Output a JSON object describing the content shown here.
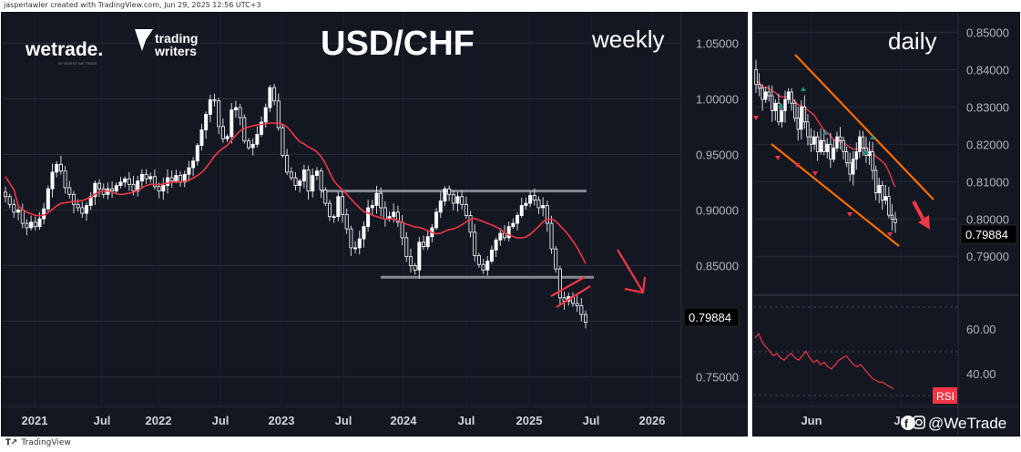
{
  "header_credit": "jasperlawler created with TradingView.com, Jun 29, 2025 12:56 UTC+3",
  "footer_brand": "TradingView",
  "brand": {
    "wetrade": "wetrade.",
    "wetrade_sub": "BY INVEST WE TRADE",
    "tw_line1": "trading",
    "tw_line2": "writers"
  },
  "weekly": {
    "title": "USD/CHF",
    "timeframe": "weekly",
    "price_tag": "0.79884",
    "x_ticks": [
      "2021",
      "Jul",
      "2022",
      "Jul",
      "2023",
      "Jul",
      "2024",
      "Jul",
      "2025",
      "Jul",
      "2026"
    ],
    "y_ticks": [
      "1.05000",
      "1.00000",
      "0.95000",
      "0.90000",
      "0.85000",
      "0.80000",
      "0.75000"
    ]
  },
  "daily": {
    "timeframe": "daily",
    "price_tag": "0.79884",
    "x_ticks": [
      "Jun",
      "Ju"
    ],
    "y_ticks": [
      "0.85000",
      "0.84000",
      "0.83000",
      "0.82000",
      "0.81000",
      "0.80000",
      "0.79000"
    ],
    "rsi_ticks": [
      "60.00",
      "40.00"
    ],
    "rsi_label": "RSI"
  },
  "handle": "@WeTrade",
  "colors": {
    "panel": "#131722",
    "up": "#ffffff",
    "ma": "#f23645",
    "level": "#868993",
    "channel": "#ff6d00",
    "arrow": "#f23645",
    "rsi": "#f23645",
    "green_mark": "#089981"
  },
  "chart_data": [
    {
      "type": "candlestick",
      "title": "USD/CHF",
      "timeframe": "weekly",
      "ylim": [
        0.725,
        1.065
      ],
      "x_range": [
        "2020-10",
        "2026-03"
      ],
      "current_price": 0.79884,
      "closes": [
        0.912,
        0.905,
        0.898,
        0.9,
        0.888,
        0.884,
        0.889,
        0.885,
        0.892,
        0.901,
        0.919,
        0.934,
        0.941,
        0.935,
        0.92,
        0.914,
        0.905,
        0.902,
        0.897,
        0.904,
        0.912,
        0.924,
        0.919,
        0.914,
        0.919,
        0.917,
        0.922,
        0.925,
        0.928,
        0.923,
        0.917,
        0.926,
        0.932,
        0.928,
        0.93,
        0.921,
        0.917,
        0.922,
        0.929,
        0.926,
        0.931,
        0.925,
        0.932,
        0.938,
        0.944,
        0.958,
        0.972,
        0.986,
        0.999,
        0.998,
        0.975,
        0.964,
        0.966,
        0.99,
        0.992,
        0.983,
        0.962,
        0.956,
        0.959,
        0.968,
        0.979,
        0.992,
        1.01,
        0.998,
        0.974,
        0.949,
        0.934,
        0.929,
        0.922,
        0.926,
        0.936,
        0.917,
        0.931,
        0.935,
        0.918,
        0.906,
        0.894,
        0.894,
        0.912,
        0.896,
        0.883,
        0.866,
        0.866,
        0.874,
        0.885,
        0.902,
        0.904,
        0.915,
        0.902,
        0.892,
        0.894,
        0.898,
        0.889,
        0.875,
        0.858,
        0.85,
        0.846,
        0.871,
        0.867,
        0.876,
        0.884,
        0.898,
        0.908,
        0.919,
        0.914,
        0.906,
        0.912,
        0.905,
        0.895,
        0.88,
        0.859,
        0.851,
        0.846,
        0.854,
        0.864,
        0.873,
        0.879,
        0.875,
        0.885,
        0.888,
        0.895,
        0.904,
        0.906,
        0.913,
        0.909,
        0.902,
        0.904,
        0.888,
        0.865,
        0.847,
        0.821,
        0.818,
        0.822,
        0.816,
        0.814,
        0.806,
        0.799
      ]
    },
    {
      "type": "candlestick",
      "title": "",
      "timeframe": "daily",
      "ylim": [
        0.782,
        0.854
      ],
      "x_range": [
        "2025-05",
        "2025-06"
      ],
      "current_price": 0.79884,
      "closes": [
        0.836,
        0.835,
        0.832,
        0.834,
        0.833,
        0.829,
        0.831,
        0.826,
        0.829,
        0.832,
        0.834,
        0.831,
        0.827,
        0.824,
        0.83,
        0.826,
        0.822,
        0.82,
        0.822,
        0.818,
        0.821,
        0.818,
        0.82,
        0.816,
        0.819,
        0.822,
        0.821,
        0.818,
        0.815,
        0.812,
        0.816,
        0.818,
        0.822,
        0.819,
        0.817,
        0.818,
        0.813,
        0.807,
        0.809,
        0.805,
        0.806,
        0.801,
        0.8,
        0.799
      ]
    }
  ]
}
